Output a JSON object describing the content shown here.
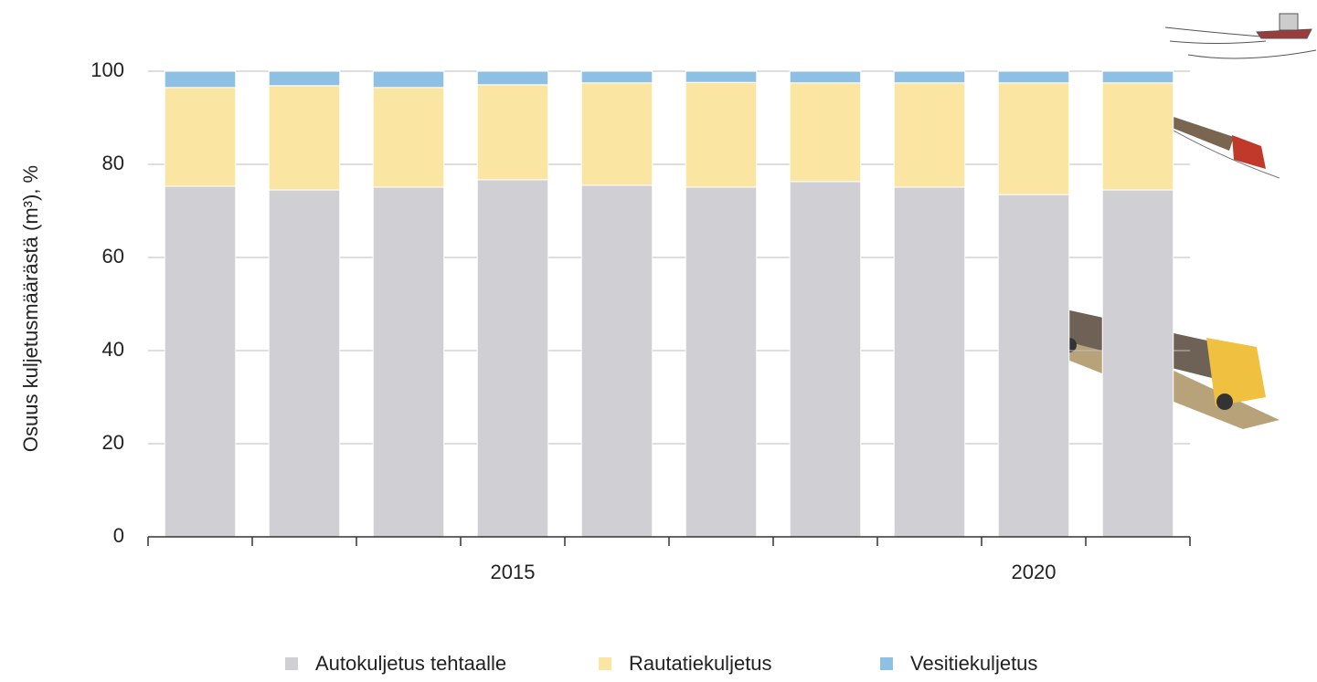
{
  "chart_data": {
    "type": "stacked_bar",
    "y_label": "Osuus kuljetusmäärästä (m³), %",
    "categories": [
      null,
      null,
      null,
      "2015",
      null,
      null,
      null,
      null,
      "2020",
      null
    ],
    "series": [
      {
        "name": "Autokuljetus tehtaalle",
        "color": "#d0cfd3",
        "values": [
          75.3,
          74.5,
          75.1,
          76.7,
          75.5,
          75.1,
          76.3,
          75.1,
          73.5,
          74.5
        ]
      },
      {
        "name": "Rautatiekuljetus",
        "color": "#fbe5a3",
        "values": [
          21.2,
          22.4,
          21.4,
          20.4,
          22.0,
          22.5,
          21.2,
          22.4,
          24.0,
          23.0
        ]
      },
      {
        "name": "Vesitiekuljetus",
        "color": "#8ec0e4",
        "values": [
          3.5,
          3.1,
          3.5,
          2.9,
          2.5,
          2.4,
          2.5,
          2.5,
          2.5,
          2.5
        ]
      }
    ],
    "ylim": [
      0,
      100
    ],
    "yticks": [
      0,
      20,
      40,
      60,
      80,
      100
    ],
    "grid": true
  }
}
